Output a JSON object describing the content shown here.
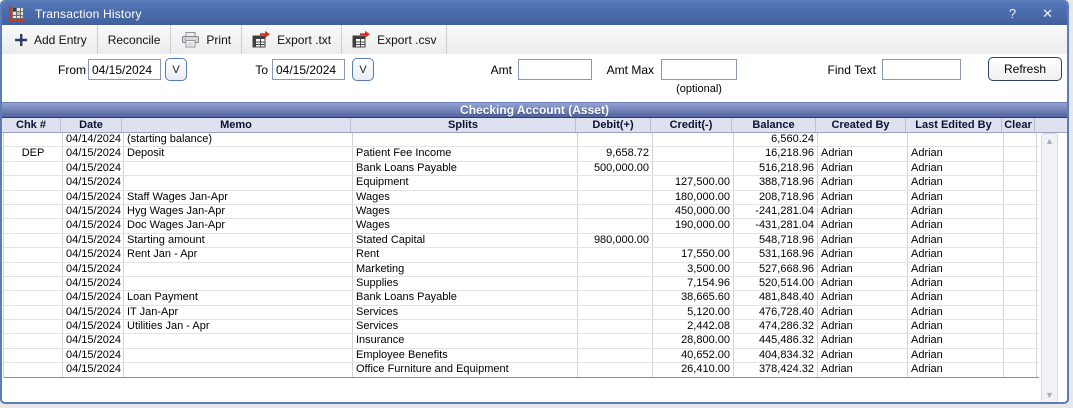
{
  "window": {
    "title": "Transaction History",
    "help": "?",
    "close": "✕"
  },
  "toolbar": {
    "add_entry": "Add Entry",
    "reconcile": "Reconcile",
    "print": "Print",
    "export_txt": "Export .txt",
    "export_csv": "Export .csv"
  },
  "filters": {
    "from_label": "From",
    "from_value": "04/15/2024",
    "from_dropdown": "V",
    "to_label": "To",
    "to_value": "04/15/2024",
    "to_dropdown": "V",
    "amt_label": "Amt",
    "amt_value": "",
    "amt_max_label": "Amt Max",
    "amt_max_value": "",
    "optional_note": "(optional)",
    "find_text_label": "Find Text",
    "find_text_value": "",
    "refresh_label": "Refresh"
  },
  "table": {
    "account_header": "Checking Account (Asset)",
    "columns": [
      "Chk #",
      "Date",
      "Memo",
      "Splits",
      "Debit(+)",
      "Credit(-)",
      "Balance",
      "Created By",
      "Last Edited By",
      "Clear"
    ],
    "rows": [
      [
        "",
        "04/14/2024",
        "(starting balance)",
        "",
        "",
        "",
        "6,560.24",
        "",
        "",
        ""
      ],
      [
        "DEP",
        "04/15/2024",
        "Deposit",
        "Patient Fee Income",
        "9,658.72",
        "",
        "16,218.96",
        "Adrian",
        "Adrian",
        ""
      ],
      [
        "",
        "04/15/2024",
        "",
        "Bank Loans Payable",
        "500,000.00",
        "",
        "516,218.96",
        "Adrian",
        "Adrian",
        ""
      ],
      [
        "",
        "04/15/2024",
        "",
        "Equipment",
        "",
        "127,500.00",
        "388,718.96",
        "Adrian",
        "Adrian",
        ""
      ],
      [
        "",
        "04/15/2024",
        "Staff Wages Jan-Apr",
        "Wages",
        "",
        "180,000.00",
        "208,718.96",
        "Adrian",
        "Adrian",
        ""
      ],
      [
        "",
        "04/15/2024",
        "Hyg Wages Jan-Apr",
        "Wages",
        "",
        "450,000.00",
        "-241,281.04",
        "Adrian",
        "Adrian",
        ""
      ],
      [
        "",
        "04/15/2024",
        "Doc Wages Jan-Apr",
        "Wages",
        "",
        "190,000.00",
        "-431,281.04",
        "Adrian",
        "Adrian",
        ""
      ],
      [
        "",
        "04/15/2024",
        "Starting amount",
        "Stated Capital",
        "980,000.00",
        "",
        "548,718.96",
        "Adrian",
        "Adrian",
        ""
      ],
      [
        "",
        "04/15/2024",
        "Rent Jan - Apr",
        "Rent",
        "",
        "17,550.00",
        "531,168.96",
        "Adrian",
        "Adrian",
        ""
      ],
      [
        "",
        "04/15/2024",
        "",
        "Marketing",
        "",
        "3,500.00",
        "527,668.96",
        "Adrian",
        "Adrian",
        ""
      ],
      [
        "",
        "04/15/2024",
        "",
        "Supplies",
        "",
        "7,154.96",
        "520,514.00",
        "Adrian",
        "Adrian",
        ""
      ],
      [
        "",
        "04/15/2024",
        "Loan Payment",
        "Bank Loans Payable",
        "",
        "38,665.60",
        "481,848.40",
        "Adrian",
        "Adrian",
        ""
      ],
      [
        "",
        "04/15/2024",
        "IT Jan-Apr",
        "Services",
        "",
        "5,120.00",
        "476,728.40",
        "Adrian",
        "Adrian",
        ""
      ],
      [
        "",
        "04/15/2024",
        "Utilities Jan - Apr",
        "Services",
        "",
        "2,442.08",
        "474,286.32",
        "Adrian",
        "Adrian",
        ""
      ],
      [
        "",
        "04/15/2024",
        "",
        "Insurance",
        "",
        "28,800.00",
        "445,486.32",
        "Adrian",
        "Adrian",
        ""
      ],
      [
        "",
        "04/15/2024",
        "",
        "Employee Benefits",
        "",
        "40,652.00",
        "404,834.32",
        "Adrian",
        "Adrian",
        ""
      ],
      [
        "",
        "04/15/2024",
        "",
        "Office Furniture and Equipment",
        "",
        "26,410.00",
        "378,424.32",
        "Adrian",
        "Adrian",
        ""
      ]
    ]
  }
}
